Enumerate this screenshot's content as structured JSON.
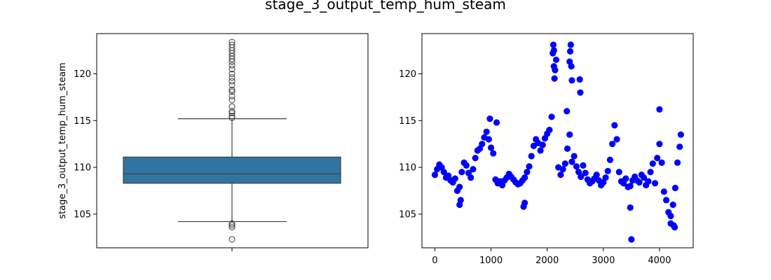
{
  "figure": {
    "title": "stage_3_output_temp_hum_steam"
  },
  "chart_data": [
    {
      "type": "box",
      "ylabel": "stage_3_output_temp_hum_steam",
      "xlabel": "",
      "ylim": [
        101.4,
        124.3
      ],
      "yticks": [
        105,
        110,
        115,
        120
      ],
      "ytick_labels": [
        "105",
        "110",
        "115",
        "120"
      ],
      "box": {
        "q1": 108.3,
        "median": 109.3,
        "q3": 111.1,
        "whisker_low": 104.2,
        "whisker_high": 115.2
      },
      "outliers_high": [
        115.3,
        115.5,
        115.8,
        116.0,
        116.5,
        117.2,
        117.6,
        118.1,
        118.3,
        118.8,
        119.2,
        119.6,
        120.0,
        120.5,
        120.9,
        121.3,
        121.6,
        121.9,
        122.2,
        122.5,
        122.8,
        123.1,
        123.4
      ],
      "outliers_low": [
        104.0,
        103.8,
        103.6,
        102.3
      ],
      "box_color": "#3274a1",
      "line_color": "#3f3f3f"
    },
    {
      "type": "scatter",
      "xlim": [
        -230,
        4600
      ],
      "ylim": [
        101.4,
        124.3
      ],
      "xticks": [
        0,
        1000,
        2000,
        3000,
        4000
      ],
      "xtick_labels": [
        "0",
        "1000",
        "2000",
        "3000",
        "4000"
      ],
      "yticks": [
        105,
        110,
        115,
        120
      ],
      "ytick_labels": [
        "105",
        "110",
        "115",
        "120"
      ],
      "color": "#0000ff",
      "x": [
        0,
        40,
        80,
        120,
        160,
        200,
        240,
        280,
        320,
        360,
        400,
        440,
        480,
        520,
        560,
        600,
        640,
        680,
        720,
        760,
        800,
        840,
        880,
        920,
        960,
        1000,
        1040,
        1080,
        1120,
        1160,
        1200,
        1240,
        1280,
        1320,
        1360,
        1400,
        1440,
        1480,
        1520,
        1560,
        1600,
        1640,
        1680,
        1720,
        1760,
        1800,
        1840,
        1880,
        1920,
        1960,
        2000,
        2040,
        2080,
        2120,
        2160,
        2200,
        2240,
        2280,
        2320,
        2360,
        2400,
        2440,
        2480,
        2520,
        2560,
        2600,
        2640,
        2680,
        2720,
        2760,
        2800,
        2840,
        2880,
        2920,
        2960,
        3000,
        3040,
        3080,
        3120,
        3160,
        3200,
        3240,
        3280,
        3320,
        3360,
        3400,
        3440,
        3480,
        3520,
        3560,
        3600,
        3640,
        3680,
        3720,
        3760,
        3800,
        3840,
        3880,
        3920,
        3960,
        4000,
        4040,
        4080,
        4120,
        4160,
        4200,
        4240,
        4280,
        4320,
        4360,
        4380,
        2100,
        2110,
        2120,
        2130,
        2140,
        2400,
        2410,
        2420,
        2430,
        2440,
        2580,
        2590,
        3500,
        3480,
        1580,
        1600,
        440,
        460,
        4000,
        4200,
        4250,
        4270,
        1100,
        980,
        2350
      ],
      "y": [
        109.2,
        109.8,
        110.3,
        110.0,
        109.5,
        108.9,
        109.1,
        108.6,
        108.4,
        108.8,
        107.5,
        107.9,
        109.5,
        110.5,
        110.2,
        109.4,
        108.9,
        109.8,
        111.0,
        111.8,
        112.0,
        112.5,
        113.2,
        113.8,
        113.0,
        112.1,
        111.5,
        108.7,
        108.3,
        108.5,
        108.1,
        108.6,
        108.9,
        109.3,
        109.0,
        108.7,
        108.4,
        108.2,
        108.3,
        108.6,
        108.9,
        109.5,
        110.1,
        111.2,
        112.3,
        113.0,
        112.6,
        111.8,
        112.4,
        113.1,
        113.6,
        114.0,
        115.4,
        120.8,
        121.5,
        110.0,
        109.2,
        109.8,
        110.4,
        112.0,
        113.5,
        110.6,
        111.2,
        110.1,
        109.5,
        109.0,
        110.2,
        109.4,
        108.7,
        108.3,
        108.5,
        108.8,
        109.2,
        108.6,
        108.1,
        108.4,
        108.9,
        109.6,
        110.8,
        112.5,
        114.5,
        113.0,
        109.5,
        108.5,
        108.3,
        108.8,
        107.9,
        108.0,
        108.6,
        109.0,
        108.6,
        108.4,
        109.2,
        108.9,
        108.1,
        108.5,
        109.5,
        110.4,
        108.3,
        111.0,
        112.5,
        110.5,
        107.4,
        106.5,
        105.2,
        104.8,
        106.0,
        107.8,
        110.5,
        112.2,
        113.5,
        122.2,
        123.1,
        122.5,
        119.5,
        120.4,
        121.3,
        122.4,
        123.1,
        120.8,
        119.3,
        119.4,
        118.0,
        102.3,
        105.7,
        105.8,
        106.2,
        106.0,
        106.5,
        116.2,
        104.0,
        103.8,
        103.6,
        114.8,
        115.2,
        116.0
      ]
    }
  ]
}
